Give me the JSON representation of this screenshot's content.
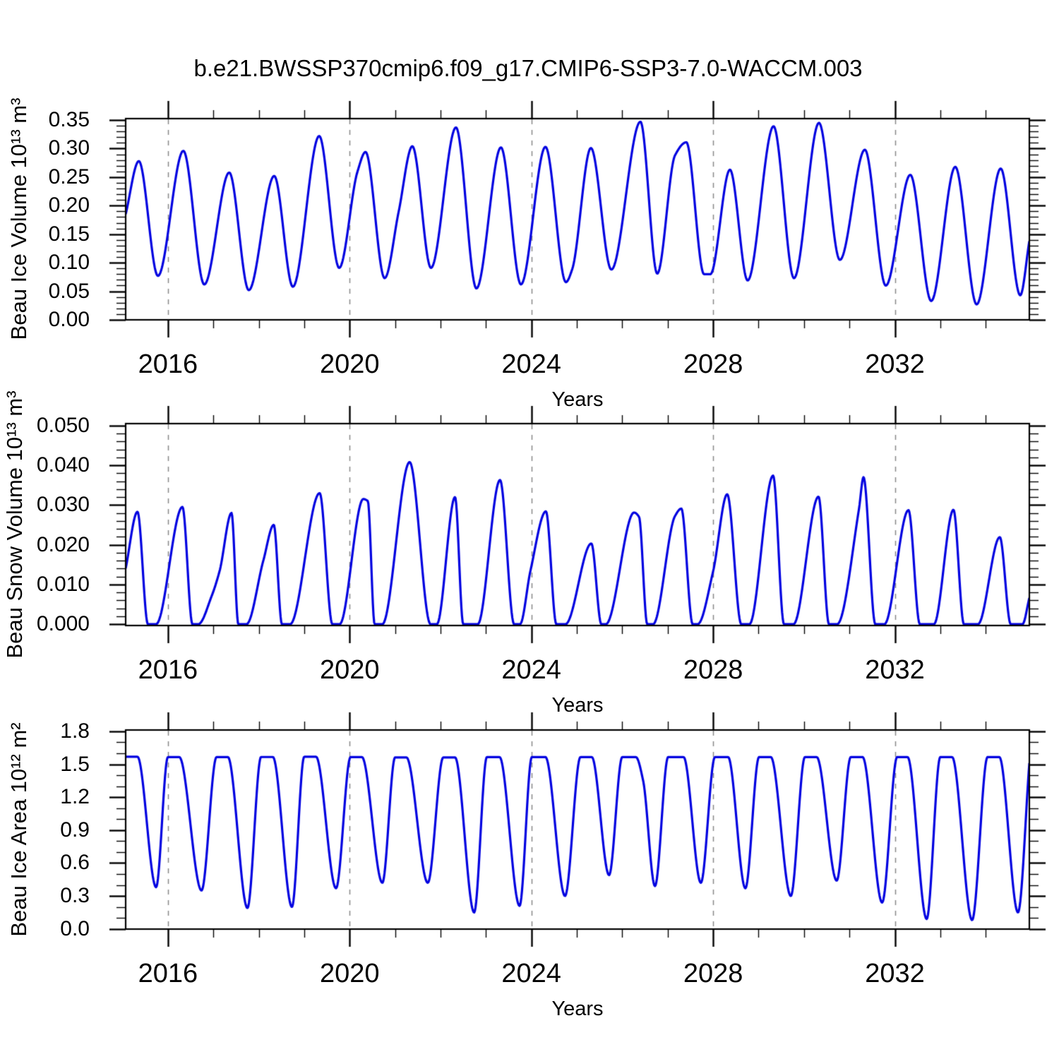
{
  "chart_data": {
    "type": "line",
    "title": "b.e21.BWSSP370cmip6.f09_g17.CMIP6-SSP3-7.0-WACCM.003",
    "series_color": "#0000e0",
    "gridline_color": "#878787",
    "axis_color": "#000000",
    "legend": "none",
    "x_axis": {
      "label": "Years",
      "range": [
        2015.07,
        2034.96
      ],
      "major_ticks": [
        2016,
        2020,
        2024,
        2028,
        2032
      ],
      "major_tick_labels": [
        "2016",
        "2020",
        "2024",
        "2028",
        "2032"
      ],
      "minor_tick_step": 1,
      "dashed_gridlines_at_major_ticks": true
    },
    "panels": [
      {
        "name": "beau-ice-volume",
        "ylabel": "Beau Ice Volume 10¹³ m³",
        "xlabel": "Years",
        "y_range_drawn": [
          0,
          0.3525
        ],
        "y_major_ticks": [
          0.0,
          0.05,
          0.1,
          0.15,
          0.2,
          0.25,
          0.3,
          0.35
        ],
        "y_tick_labels": [
          "0.00",
          "0.05",
          "0.10",
          "0.15",
          "0.20",
          "0.25",
          "0.30",
          "0.35"
        ],
        "y_minor_step": 0.01,
        "series": {
          "name": "Beau Ice Volume (10^13 m^3)",
          "points": [
            [
              2015.07,
              0.185
            ],
            [
              2015.36,
              0.278
            ],
            [
              2015.78,
              0.077
            ],
            [
              2016.34,
              0.296
            ],
            [
              2016.8,
              0.062
            ],
            [
              2017.35,
              0.258
            ],
            [
              2017.78,
              0.052
            ],
            [
              2018.34,
              0.252
            ],
            [
              2018.75,
              0.058
            ],
            [
              2019.33,
              0.322
            ],
            [
              2019.77,
              0.091
            ],
            [
              2020.17,
              0.259
            ],
            [
              2020.35,
              0.294
            ],
            [
              2020.77,
              0.073
            ],
            [
              2021.08,
              0.19
            ],
            [
              2021.38,
              0.304
            ],
            [
              2021.79,
              0.091
            ],
            [
              2022.34,
              0.337
            ],
            [
              2022.79,
              0.055
            ],
            [
              2023.33,
              0.302
            ],
            [
              2023.77,
              0.062
            ],
            [
              2024.31,
              0.303
            ],
            [
              2024.76,
              0.066
            ],
            [
              2024.9,
              0.089
            ],
            [
              2025.31,
              0.301
            ],
            [
              2025.76,
              0.088
            ],
            [
              2026.4,
              0.347
            ],
            [
              2026.77,
              0.081
            ],
            [
              2027.16,
              0.288
            ],
            [
              2027.41,
              0.311
            ],
            [
              2027.8,
              0.08
            ],
            [
              2027.94,
              0.08
            ],
            [
              2028.37,
              0.263
            ],
            [
              2028.76,
              0.069
            ],
            [
              2029.33,
              0.339
            ],
            [
              2029.78,
              0.073
            ],
            [
              2030.33,
              0.345
            ],
            [
              2030.79,
              0.105
            ],
            [
              2031.34,
              0.298
            ],
            [
              2031.8,
              0.06
            ],
            [
              2032.34,
              0.254
            ],
            [
              2032.8,
              0.033
            ],
            [
              2033.33,
              0.268
            ],
            [
              2033.8,
              0.027
            ],
            [
              2034.33,
              0.265
            ],
            [
              2034.76,
              0.043
            ],
            [
              2034.96,
              0.138
            ]
          ]
        }
      },
      {
        "name": "beau-snow-volume",
        "ylabel": "Beau Snow Volume 10¹³ m³",
        "xlabel": "Years",
        "y_range_drawn": [
          -0.00035,
          0.0505
        ],
        "y_major_ticks": [
          0.0,
          0.01,
          0.02,
          0.03,
          0.04,
          0.05
        ],
        "y_tick_labels": [
          "0.000",
          "0.010",
          "0.020",
          "0.030",
          "0.040",
          "0.050"
        ],
        "y_minor_step": 0.002,
        "series": {
          "name": "Beau Snow Volume (10^13 m^3)",
          "points": [
            [
              2015.07,
              0.014
            ],
            [
              2015.33,
              0.0283
            ],
            [
              2015.56,
              0
            ],
            [
              2015.74,
              0
            ],
            [
              2016.32,
              0.0295
            ],
            [
              2016.54,
              0
            ],
            [
              2016.67,
              0
            ],
            [
              2016.96,
              0.007
            ],
            [
              2017.14,
              0.0135
            ],
            [
              2017.4,
              0.028
            ],
            [
              2017.55,
              0
            ],
            [
              2017.73,
              0
            ],
            [
              2018.1,
              0.016
            ],
            [
              2018.33,
              0.025
            ],
            [
              2018.51,
              0
            ],
            [
              2018.69,
              0
            ],
            [
              2019.34,
              0.033
            ],
            [
              2019.62,
              0
            ],
            [
              2019.78,
              0
            ],
            [
              2020.3,
              0.0315
            ],
            [
              2020.4,
              0.031
            ],
            [
              2020.55,
              0
            ],
            [
              2020.72,
              0
            ],
            [
              2021.32,
              0.0408
            ],
            [
              2021.78,
              0
            ],
            [
              2021.92,
              0
            ],
            [
              2022.32,
              0.032
            ],
            [
              2022.5,
              0
            ],
            [
              2022.82,
              0
            ],
            [
              2023.31,
              0.0363
            ],
            [
              2023.62,
              0
            ],
            [
              2023.75,
              0
            ],
            [
              2023.98,
              0.0135
            ],
            [
              2024.32,
              0.0284
            ],
            [
              2024.55,
              0
            ],
            [
              2024.75,
              0
            ],
            [
              2025.32,
              0.0203
            ],
            [
              2025.54,
              0
            ],
            [
              2025.64,
              0
            ],
            [
              2026.26,
              0.0281
            ],
            [
              2026.37,
              0.027
            ],
            [
              2026.55,
              0
            ],
            [
              2026.68,
              0
            ],
            [
              2027.16,
              0.0272
            ],
            [
              2027.3,
              0.0291
            ],
            [
              2027.55,
              0
            ],
            [
              2027.66,
              0
            ],
            [
              2028.0,
              0.0133
            ],
            [
              2028.31,
              0.0327
            ],
            [
              2028.62,
              0
            ],
            [
              2028.8,
              0
            ],
            [
              2029.32,
              0.0374
            ],
            [
              2029.56,
              0
            ],
            [
              2029.77,
              0
            ],
            [
              2030.32,
              0.0321
            ],
            [
              2030.55,
              0
            ],
            [
              2030.73,
              0
            ],
            [
              2031.21,
              0.029
            ],
            [
              2031.31,
              0.037
            ],
            [
              2031.57,
              0
            ],
            [
              2031.77,
              0
            ],
            [
              2032.3,
              0.0287
            ],
            [
              2032.55,
              0
            ],
            [
              2032.86,
              0
            ],
            [
              2033.29,
              0.0288
            ],
            [
              2033.52,
              0
            ],
            [
              2033.83,
              0
            ],
            [
              2034.31,
              0.0219
            ],
            [
              2034.55,
              0
            ],
            [
              2034.81,
              0
            ],
            [
              2034.96,
              0.0066
            ]
          ]
        }
      },
      {
        "name": "beau-ice-area",
        "ylabel": "Beau Ice Area 10¹² m²",
        "xlabel": "Years",
        "y_range_drawn": [
          -0.002,
          1.812
        ],
        "y_major_ticks": [
          0.0,
          0.3,
          0.6,
          0.9,
          1.2,
          1.5,
          1.8
        ],
        "y_tick_labels": [
          "0.0",
          "0.3",
          "0.6",
          "0.9",
          "1.2",
          "1.5",
          "1.8"
        ],
        "y_minor_step": 0.1,
        "series": {
          "name": "Beau Ice Area (10^12 m^2)",
          "points": [
            [
              2015.07,
              1.568
            ],
            [
              2015.33,
              1.568
            ],
            [
              2015.74,
              0.38
            ],
            [
              2016.0,
              1.565
            ],
            [
              2016.25,
              1.565
            ],
            [
              2016.74,
              0.35
            ],
            [
              2017.07,
              1.565
            ],
            [
              2017.32,
              1.565
            ],
            [
              2017.75,
              0.19
            ],
            [
              2018.05,
              1.566
            ],
            [
              2018.31,
              1.566
            ],
            [
              2018.73,
              0.2
            ],
            [
              2019.0,
              1.568
            ],
            [
              2019.26,
              1.568
            ],
            [
              2019.7,
              0.37
            ],
            [
              2020.02,
              1.565
            ],
            [
              2020.27,
              1.565
            ],
            [
              2020.72,
              0.42
            ],
            [
              2021.0,
              1.562
            ],
            [
              2021.25,
              1.562
            ],
            [
              2021.72,
              0.42
            ],
            [
              2022.06,
              1.562
            ],
            [
              2022.32,
              1.562
            ],
            [
              2022.74,
              0.15
            ],
            [
              2023.02,
              1.565
            ],
            [
              2023.3,
              1.565
            ],
            [
              2023.74,
              0.21
            ],
            [
              2024.01,
              1.565
            ],
            [
              2024.31,
              1.565
            ],
            [
              2024.74,
              0.3
            ],
            [
              2025.08,
              1.565
            ],
            [
              2025.33,
              1.565
            ],
            [
              2025.71,
              0.49
            ],
            [
              2026.0,
              1.565
            ],
            [
              2026.3,
              1.565
            ],
            [
              2026.46,
              1.35
            ],
            [
              2026.72,
              0.39
            ],
            [
              2027.01,
              1.565
            ],
            [
              2027.35,
              1.565
            ],
            [
              2027.73,
              0.42
            ],
            [
              2028.04,
              1.565
            ],
            [
              2028.33,
              1.565
            ],
            [
              2028.71,
              0.37
            ],
            [
              2029.01,
              1.565
            ],
            [
              2029.27,
              1.565
            ],
            [
              2029.71,
              0.3
            ],
            [
              2030.02,
              1.565
            ],
            [
              2030.28,
              1.565
            ],
            [
              2030.72,
              0.44
            ],
            [
              2031.03,
              1.565
            ],
            [
              2031.29,
              1.565
            ],
            [
              2031.72,
              0.24
            ],
            [
              2032.05,
              1.565
            ],
            [
              2032.28,
              1.565
            ],
            [
              2032.7,
              0.09
            ],
            [
              2033.0,
              1.565
            ],
            [
              2033.26,
              1.565
            ],
            [
              2033.7,
              0.08
            ],
            [
              2034.04,
              1.565
            ],
            [
              2034.3,
              1.565
            ],
            [
              2034.71,
              0.15
            ],
            [
              2034.96,
              1.51
            ]
          ]
        }
      }
    ]
  }
}
